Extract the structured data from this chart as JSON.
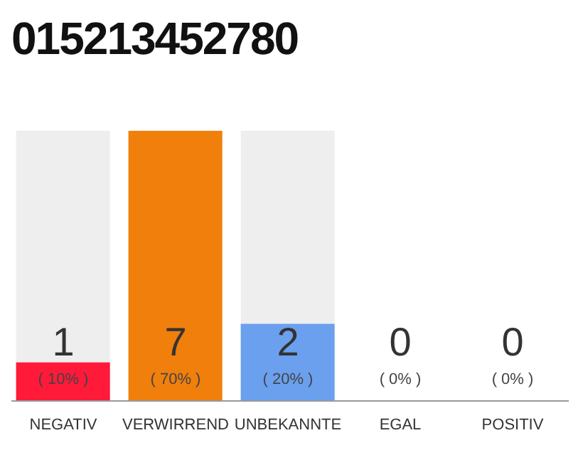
{
  "chart_data": {
    "type": "bar",
    "title": "015213452780",
    "categories": [
      "NEGATIV",
      "VERWIRREND",
      "UNBEKANNTE",
      "EGAL",
      "POSITIV"
    ],
    "values": [
      1,
      7,
      2,
      0,
      0
    ],
    "colors": [
      "#ff1a3a",
      "#f07f0c",
      "#6aa0ee",
      "#e6e6e6",
      "#e6e6e6"
    ],
    "data_labels": true,
    "annotations": [
      "( 10% )",
      "( 70% )",
      "( 20% )",
      "( 0% )",
      "( 0% )"
    ],
    "grid": false,
    "legend": false
  }
}
